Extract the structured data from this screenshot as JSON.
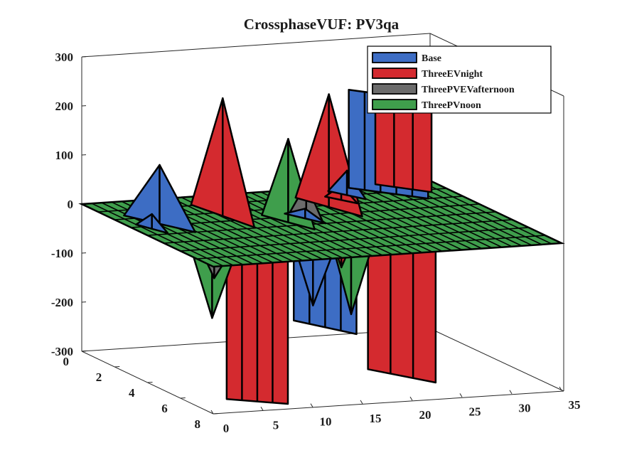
{
  "chart_data": {
    "type": "surface3d",
    "title": "CrossphaseVUF: PV3qa",
    "xlabel": "",
    "ylabel": "",
    "zlabel": "",
    "xlim": [
      0,
      35
    ],
    "ylim": [
      0,
      8
    ],
    "zlim": [
      -300,
      300
    ],
    "xticks": [
      "0",
      "5",
      "10",
      "15",
      "20",
      "25",
      "30",
      "35"
    ],
    "yticks": [
      "0",
      "2",
      "4",
      "6",
      "8"
    ],
    "zticks": [
      "300",
      "200",
      "100",
      "0",
      "-100",
      "-200",
      "-300"
    ],
    "legend_position": "top-right",
    "colors": {
      "Base": "#3d6dc4",
      "ThreeEVnight": "#d42a2f",
      "ThreeEVnight_dark": "#a5151a",
      "ThreePVEVafternoon": "#6b6b6b",
      "ThreePVnoon": "#3f9e4c",
      "plane_green": "#3f9e4c",
      "edge": "#000000"
    },
    "series": [
      {
        "name": "Base",
        "comment_free_points": [
          {
            "x": 2,
            "y": 3,
            "z": -15
          },
          {
            "x": 3,
            "y": 3,
            "z": 120
          },
          {
            "x": 4,
            "y": 3,
            "z": 70
          },
          {
            "x": 13,
            "y": 5,
            "z": -95
          },
          {
            "x": 16,
            "y": 2,
            "z": 40
          },
          {
            "x": 18,
            "y": 3,
            "z": 5
          },
          {
            "x": 20,
            "y": 2,
            "z": -220
          },
          {
            "x": 22,
            "y": 1,
            "z": 30
          },
          {
            "x": 24,
            "y": 0,
            "z": 55
          },
          {
            "x": 26,
            "y": 0,
            "z": 200
          },
          {
            "x": 30,
            "y": 0,
            "z": 130
          }
        ]
      },
      {
        "name": "ThreeEVnight",
        "comment_free_points": [
          {
            "x": 3,
            "y": 7,
            "z": -260
          },
          {
            "x": 6,
            "y": 6,
            "z": -290
          },
          {
            "x": 10,
            "y": 3,
            "z": 230
          },
          {
            "x": 13,
            "y": 2,
            "z": 50
          },
          {
            "x": 21,
            "y": 2,
            "z": 225
          },
          {
            "x": 22,
            "y": 6,
            "z": -260
          },
          {
            "x": 27,
            "y": 2,
            "z": 180
          }
        ]
      },
      {
        "name": "ThreePVEVafternoon",
        "comment_free_points": [
          {
            "x": 3,
            "y": 6,
            "z": -45
          },
          {
            "x": 17,
            "y": 4,
            "z": 60
          }
        ]
      },
      {
        "name": "ThreePVnoon",
        "comment_free_points": [
          {
            "x": 2,
            "y": 7,
            "z": -120
          },
          {
            "x": 14,
            "y": 4,
            "z": 155
          },
          {
            "x": 16,
            "y": 6,
            "z": -140
          }
        ]
      }
    ]
  }
}
